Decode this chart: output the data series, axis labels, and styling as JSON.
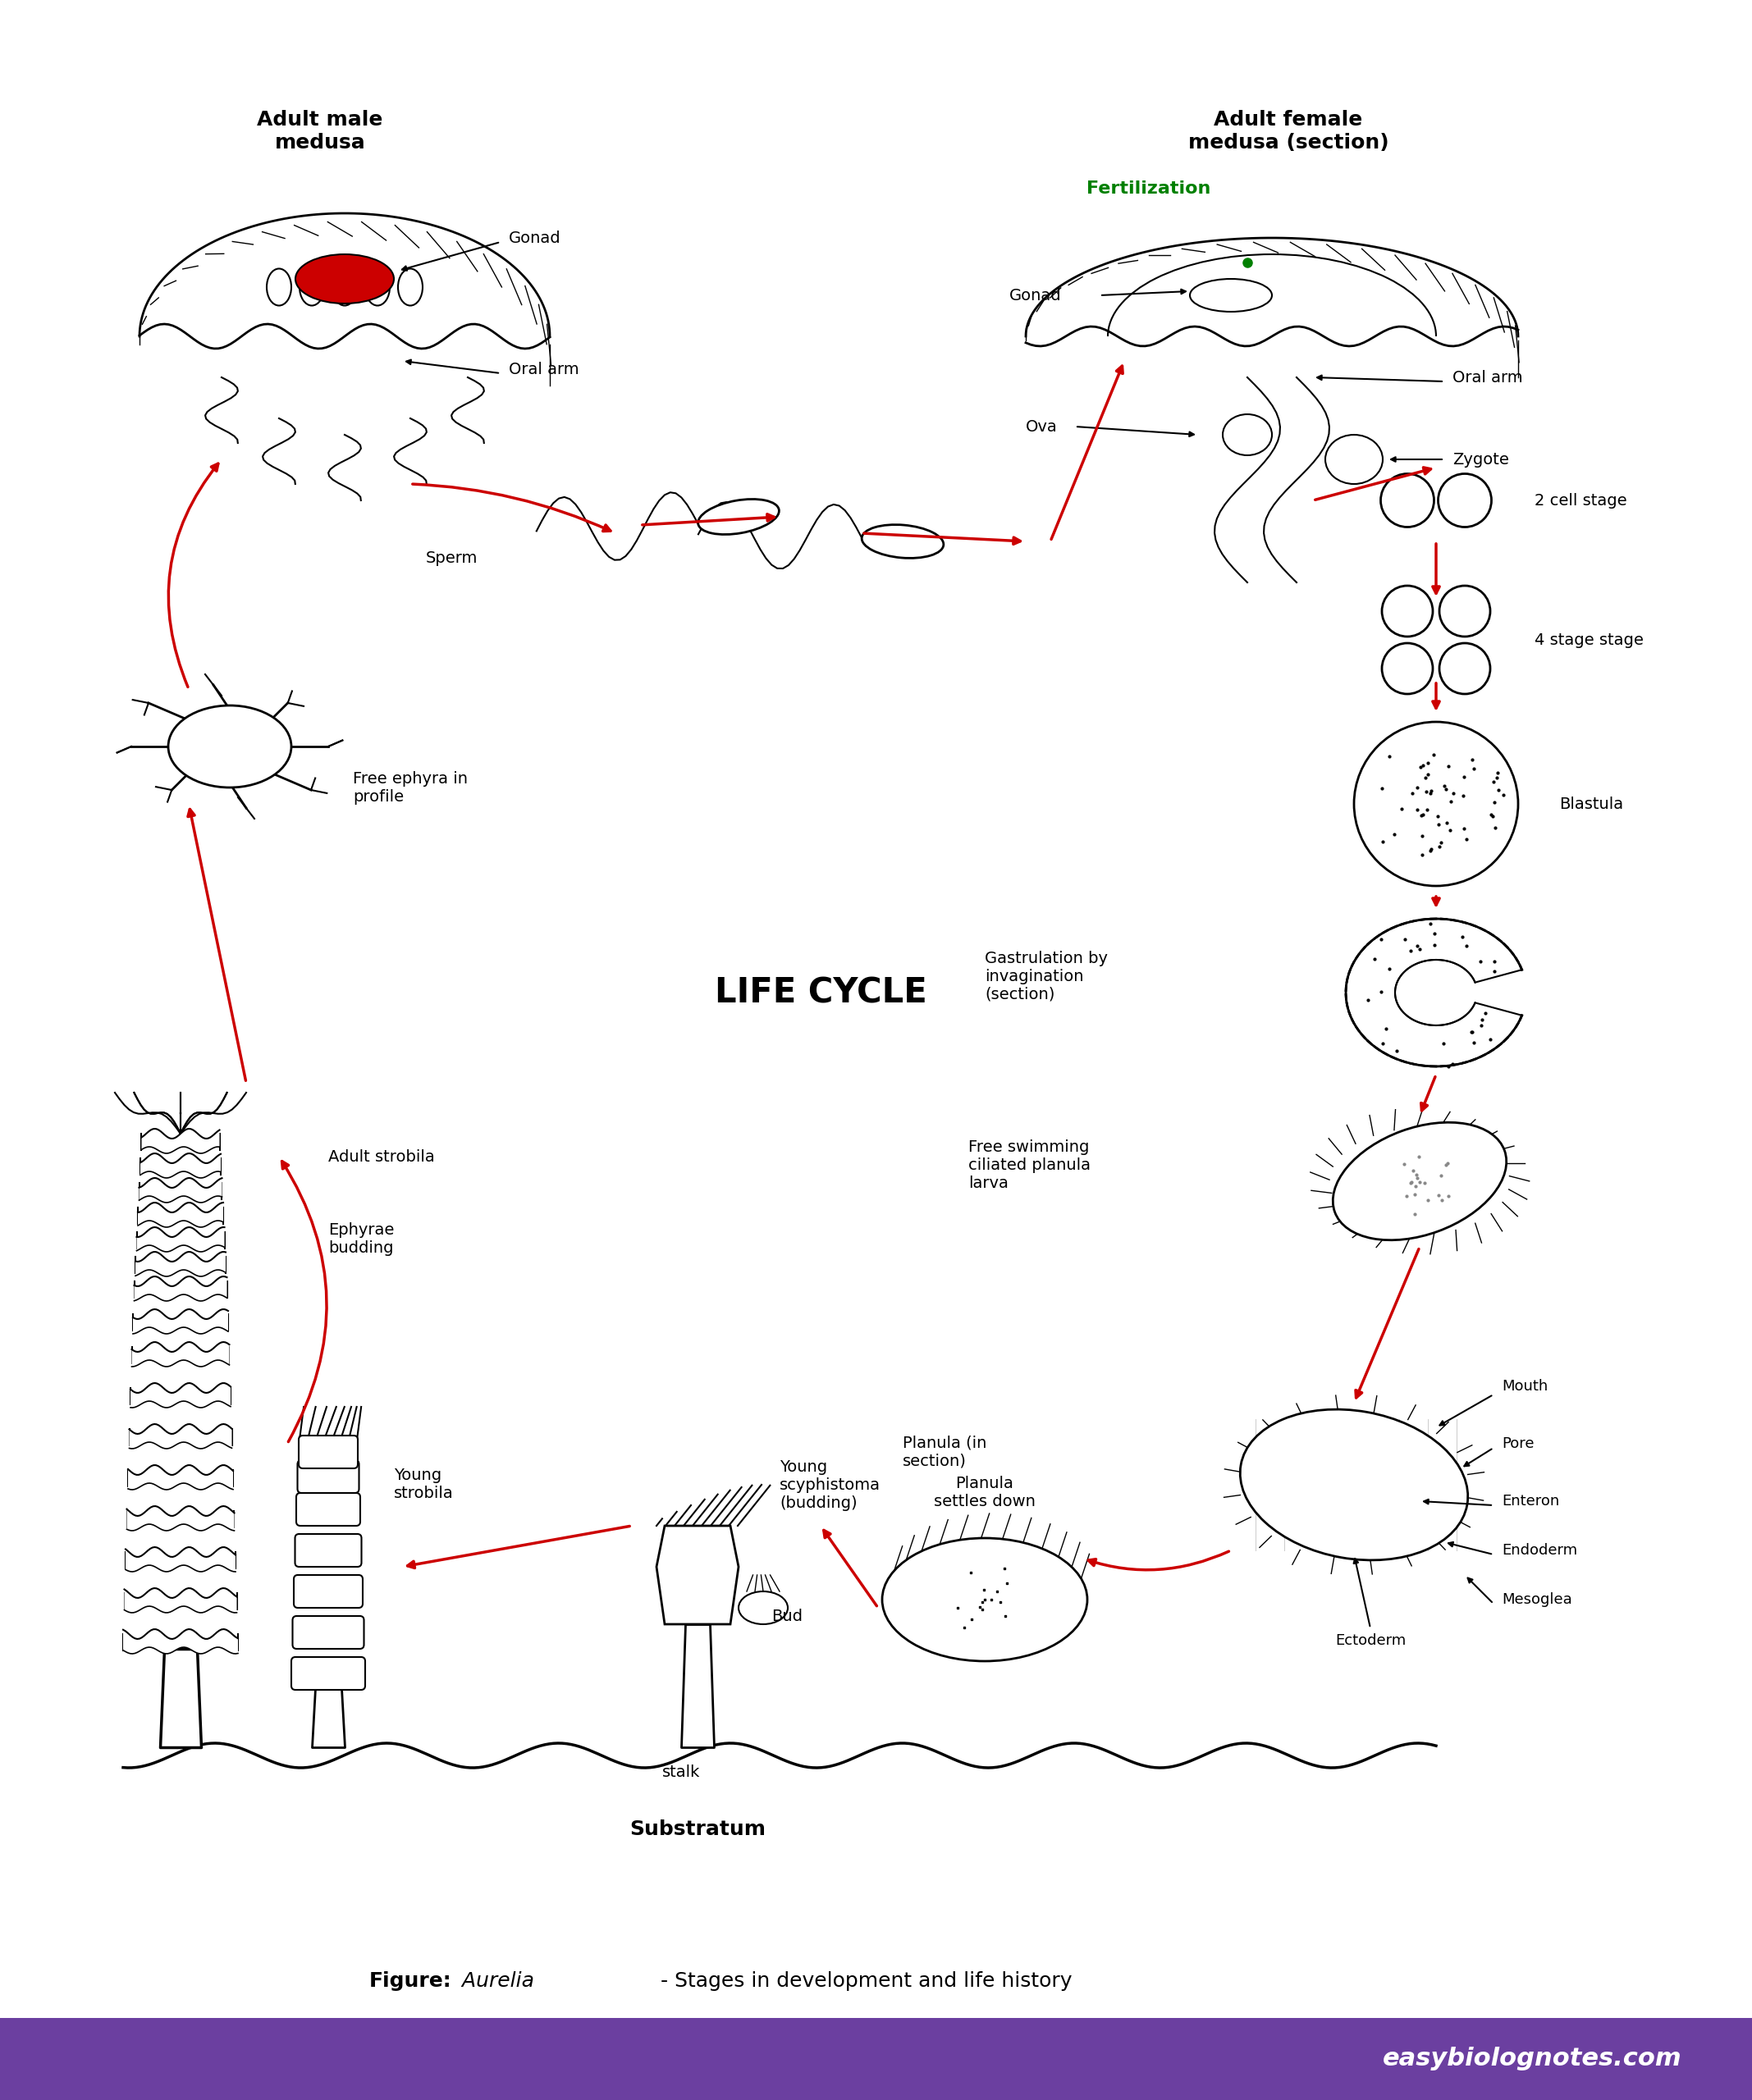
{
  "title": "LIFE CYCLE",
  "figure_caption_bold": "Figure:",
  "figure_caption_italic": " Aurelia",
  "figure_caption_normal": "- Stages in development and life history",
  "footer_text": "easybiolognotes.com",
  "footer_bg": "#6B3FA0",
  "footer_text_color": "#ffffff",
  "arrow_color": "#cc0000",
  "label_color": "#000000",
  "fertilization_color": "#008000",
  "bg_color": "#ffffff",
  "labels": {
    "adult_male": "Adult male\nmedusa",
    "adult_female": "Adult female\nmedusa (section)",
    "gonad_male": "Gonad",
    "oral_arm_male": "Oral arm",
    "sperm": "Sperm",
    "fertilization": "Fertilization",
    "gonad_female": "Gonad",
    "ova": "Ova",
    "oral_arm_female": "Oral arm",
    "zygote": "Zygote",
    "two_cell": "2 cell stage",
    "four_cell": "4 stage stage",
    "blastula": "Blastula",
    "gastrulation": "Gastrulation by\ninvagination\n(section)",
    "free_swimming": "Free swimming\nciliated planula\nlarva",
    "mouth": "Mouth",
    "pore": "Pore",
    "enteron": "Enteron",
    "endoderm": "Endoderm",
    "mesoglea": "Mesoglea",
    "ectoderm": "Ectoderm",
    "planula_section": "Planula (in\nsection)",
    "planula_settles": "Planula\nsettles down",
    "young_scyphistoma": "Young\nscyphistoma\n(budding)",
    "bud": "Bud",
    "stalk": "stalk",
    "young_strobila": "Young\nstrobila",
    "ephyrae_budding": "Ephyrae\nbudding",
    "adult_strobila": "Adult strobila",
    "free_ephyra": "Free ephyra in\nprofile",
    "substratum": "Substratum"
  }
}
